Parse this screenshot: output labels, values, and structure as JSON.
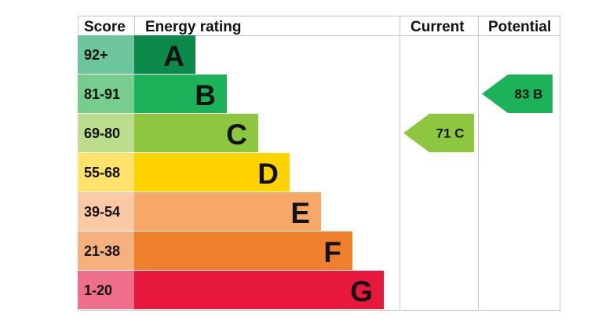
{
  "headers": {
    "score": "Score",
    "rating": "Energy rating",
    "current": "Current",
    "potential": "Potential"
  },
  "chart_data": {
    "type": "bar",
    "bands": [
      {
        "range": "92+",
        "letter": "A",
        "color": "#0b8a4a",
        "score_color": "#6dc59b"
      },
      {
        "range": "81-91",
        "letter": "B",
        "color": "#1bb25a",
        "score_color": "#76cd8e"
      },
      {
        "range": "69-80",
        "letter": "C",
        "color": "#8dc63f",
        "score_color": "#bbdd8c"
      },
      {
        "range": "55-68",
        "letter": "D",
        "color": "#ffd300",
        "score_color": "#ffe36b"
      },
      {
        "range": "39-54",
        "letter": "E",
        "color": "#f7a867",
        "score_color": "#fbc9a3"
      },
      {
        "range": "21-38",
        "letter": "F",
        "color": "#ef7f2a",
        "score_color": "#f5b07e"
      },
      {
        "range": "1-20",
        "letter": "G",
        "color": "#e8173c",
        "score_color": "#ef6f8a"
      }
    ],
    "current": {
      "value": 71,
      "letter": "C",
      "label": "71  C",
      "color": "#8dc63f"
    },
    "potential": {
      "value": 83,
      "letter": "B",
      "label": "83  B",
      "color": "#1bb25a"
    }
  }
}
